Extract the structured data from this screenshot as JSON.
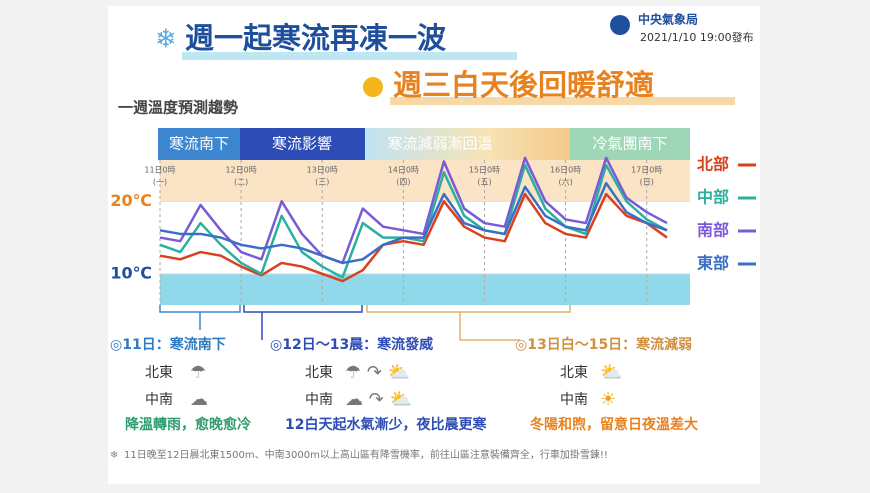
{
  "header": {
    "title": "週一起寒流再凍一波",
    "agency": "中央氣象局",
    "issued": "2021/1/10 19:00發布",
    "subtitle": "週三白天後回暖舒適",
    "section": "一週溫度預測趨勢"
  },
  "phases": [
    "寒流南下",
    "寒流影響",
    "寒流減弱漸回溫",
    "冷氣團南下"
  ],
  "chart_data": {
    "type": "line",
    "categories": [
      "11日0時",
      null,
      null,
      null,
      "12日0時",
      null,
      null,
      null,
      "13日0時",
      null,
      null,
      null,
      "14日0時",
      null,
      null,
      null,
      "15日0時",
      null,
      null,
      null,
      "16日0時",
      null,
      null,
      null,
      "17日0時",
      null
    ],
    "weekdays": [
      "(一)",
      "(二)",
      "(三)",
      "(四)",
      "(五)",
      "(六)",
      "(日)"
    ],
    "series": [
      {
        "name": "北部",
        "color": "#d9401e",
        "values": [
          12.5,
          12,
          13,
          12.5,
          11,
          9.8,
          11.5,
          11,
          10,
          9,
          10.5,
          14,
          14.5,
          14,
          20,
          16.5,
          15,
          14.5,
          21,
          17,
          15.5,
          15,
          21,
          18,
          17,
          15
        ]
      },
      {
        "name": "中部",
        "color": "#2bb0a0",
        "values": [
          14,
          13,
          17,
          14,
          11.5,
          10,
          18,
          13,
          11,
          9.5,
          17,
          15,
          15,
          14.5,
          24,
          18,
          16,
          15.5,
          25,
          19,
          16.5,
          15.5,
          25,
          20,
          17.5,
          16
        ]
      },
      {
        "name": "南部",
        "color": "#7b5ad6",
        "values": [
          15,
          14.5,
          19.5,
          16,
          13,
          12,
          20,
          15.5,
          12.5,
          11.5,
          19,
          16.5,
          16,
          15.5,
          25.5,
          19,
          17,
          16.5,
          26,
          20,
          17.5,
          17,
          26,
          20.5,
          18.5,
          17
        ]
      },
      {
        "name": "東部",
        "color": "#3a6fc4",
        "values": [
          16,
          15.5,
          15.5,
          15,
          14,
          13.5,
          14,
          13.5,
          12.5,
          11.5,
          12,
          14,
          15,
          15,
          21,
          17,
          16,
          15.5,
          22,
          18,
          16.5,
          16,
          22.5,
          18.5,
          17,
          16
        ]
      }
    ],
    "ylim": [
      5.7,
      25.7
    ],
    "yticks": [
      {
        "value": 10,
        "label": "10℃"
      },
      {
        "value": 20,
        "label": "20℃"
      }
    ],
    "legend": "right"
  },
  "panels": [
    {
      "heading": "11日：寒流南下",
      "rows": [
        "北東",
        "中南"
      ],
      "summary": "降溫轉雨，愈晚愈冷"
    },
    {
      "heading": "12日～13晨：寒流發威",
      "rows": [
        "北東",
        "中南"
      ],
      "summary": "12白天起水氣漸少，夜比晨更寒"
    },
    {
      "heading": "13日白～15日：寒流減弱",
      "rows": [
        "北東",
        "中南"
      ],
      "summary": "冬陽和煦，留意日夜溫差大"
    }
  ],
  "footnote": "11日晚至12日晨北東1500m、中南3000m以上高山區有降雪機率，前往山區注意裝備齊全，行車加掛雪鍊!!"
}
